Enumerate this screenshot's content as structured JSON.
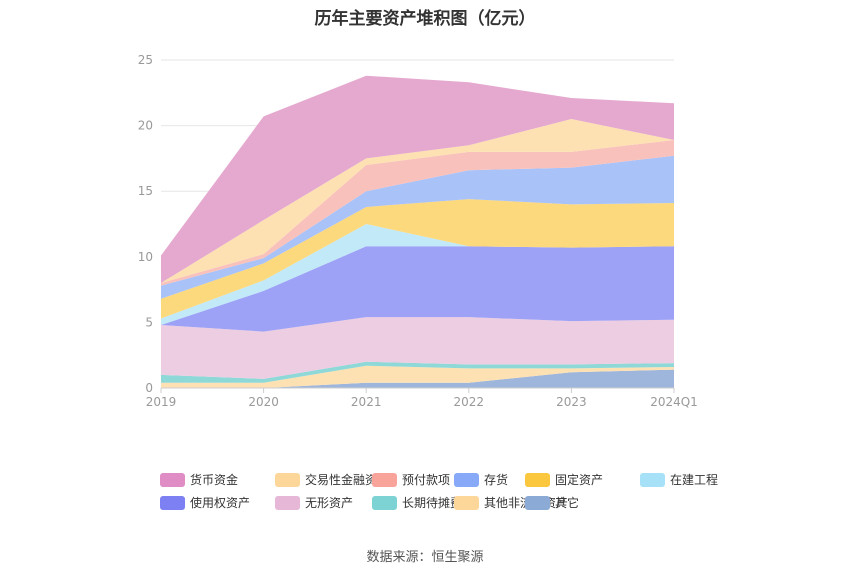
{
  "title": "历年主要资产堆积图（亿元）",
  "source": "数据来源：恒生聚源",
  "chart_data": {
    "type": "area",
    "stacked": true,
    "categories": [
      "2019",
      "2020",
      "2021",
      "2022",
      "2023",
      "2024Q1"
    ],
    "ylim": [
      0,
      25
    ],
    "yticks": [
      0,
      5,
      10,
      15,
      20,
      25
    ],
    "grid": true,
    "legend_position": "bottom",
    "series": [
      {
        "name": "其它",
        "color": "#9eb6dc",
        "values": [
          0.0,
          0.0,
          0.4,
          0.4,
          1.2,
          1.4
        ]
      },
      {
        "name": "其他非流动资产",
        "color": "#fde1b3",
        "values": [
          0.4,
          0.4,
          1.3,
          1.1,
          0.3,
          0.2
        ]
      },
      {
        "name": "长期待摊费用",
        "color": "#8fd8d8",
        "values": [
          0.6,
          0.3,
          0.3,
          0.3,
          0.3,
          0.3
        ]
      },
      {
        "name": "无形资产",
        "color": "#eccde2",
        "values": [
          3.8,
          3.6,
          3.4,
          3.6,
          3.3,
          3.3
        ]
      },
      {
        "name": "使用权资产",
        "color": "#9ea2f6",
        "values": [
          0.0,
          3.1,
          5.4,
          5.4,
          5.6,
          5.6
        ]
      },
      {
        "name": "在建工程",
        "color": "#c2e9f7",
        "values": [
          0.5,
          0.8,
          1.7,
          0.0,
          0.0,
          0.0
        ]
      },
      {
        "name": "固定资产",
        "color": "#fcd97c",
        "values": [
          1.5,
          1.3,
          1.3,
          3.6,
          3.3,
          3.3
        ]
      },
      {
        "name": "存货",
        "color": "#a9c2f8",
        "values": [
          1.0,
          0.4,
          1.2,
          2.2,
          2.8,
          3.6
        ]
      },
      {
        "name": "预付款项",
        "color": "#f9c1bb",
        "values": [
          0.2,
          0.3,
          2.0,
          1.4,
          1.2,
          1.2
        ]
      },
      {
        "name": "交易性金融资产",
        "color": "#fde1b3",
        "values": [
          0.0,
          2.6,
          0.5,
          0.5,
          2.5,
          0.0
        ]
      },
      {
        "name": "货币资金",
        "color": "#e5a9cf",
        "values": [
          2.1,
          7.9,
          6.3,
          4.8,
          1.6,
          2.8
        ]
      }
    ],
    "legend": [
      {
        "name": "货币资金",
        "color": "#df8dc4"
      },
      {
        "name": "交易性金融资产",
        "color": "#fdd79a"
      },
      {
        "name": "预付款项",
        "color": "#f8a49b"
      },
      {
        "name": "存货",
        "color": "#87a9f7"
      },
      {
        "name": "固定资产",
        "color": "#fbc73f"
      },
      {
        "name": "在建工程",
        "color": "#a6e1f7"
      },
      {
        "name": "使用权资产",
        "color": "#7d80f2"
      },
      {
        "name": "无形资产",
        "color": "#e6b7d6"
      },
      {
        "name": "长期待摊费用",
        "color": "#7dd3d3"
      },
      {
        "name": "其他非流动资产",
        "color": "#fdd79a"
      },
      {
        "name": "其它",
        "color": "#8caad6"
      }
    ]
  }
}
